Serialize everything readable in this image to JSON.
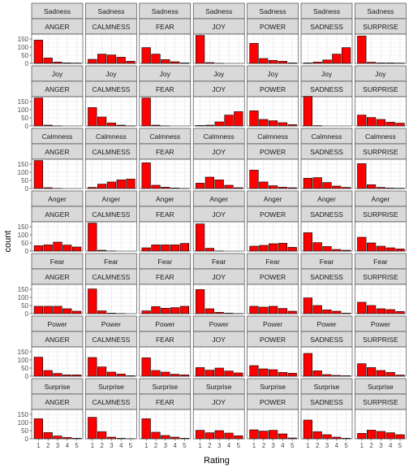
{
  "chart_data": {
    "type": "bar",
    "xlabel": "Rating",
    "ylabel": "count",
    "x_ticks": [
      "1",
      "2",
      "3",
      "4",
      "5"
    ],
    "y_ticks": [
      0,
      50,
      100,
      150
    ],
    "ylim": [
      0,
      180
    ],
    "bar_fill": "#ff0000",
    "bar_stroke": "#000000",
    "strip_fill": "#d9d9d9",
    "panel_bg": "#ffffff",
    "grid": true,
    "grid_color": "#ebebeb",
    "row_labels": [
      "Sadness",
      "Joy",
      "Calmness",
      "Anger",
      "Fear",
      "Power",
      "Surprise"
    ],
    "col_labels": [
      "ANGER",
      "CALMNESS",
      "FEAR",
      "JOY",
      "POWER",
      "SADNESS",
      "SURPRISE"
    ],
    "panels": [
      [
        [
          143,
          33,
          8,
          3,
          2
        ],
        [
          25,
          57,
          52,
          38,
          13
        ],
        [
          97,
          57,
          23,
          10,
          3
        ],
        [
          172,
          5,
          1,
          0,
          0
        ],
        [
          123,
          30,
          18,
          13,
          3
        ],
        [
          3,
          8,
          21,
          57,
          97
        ],
        [
          168,
          7,
          3,
          3,
          2
        ]
      ],
      [
        [
          172,
          5,
          1,
          0,
          0
        ],
        [
          113,
          55,
          18,
          5,
          1
        ],
        [
          172,
          5,
          1,
          0,
          0
        ],
        [
          3,
          5,
          25,
          67,
          88
        ],
        [
          93,
          40,
          32,
          20,
          8
        ],
        [
          182,
          2,
          0,
          0,
          0
        ],
        [
          67,
          52,
          40,
          23,
          17
        ]
      ],
      [
        [
          172,
          5,
          1,
          0,
          0
        ],
        [
          7,
          27,
          40,
          53,
          58
        ],
        [
          158,
          20,
          8,
          3,
          1
        ],
        [
          33,
          70,
          53,
          20,
          5
        ],
        [
          113,
          40,
          17,
          8,
          5
        ],
        [
          63,
          67,
          37,
          15,
          7
        ],
        [
          153,
          23,
          7,
          3,
          2
        ]
      ],
      [
        [
          33,
          38,
          55,
          37,
          25
        ],
        [
          172,
          5,
          1,
          0,
          0
        ],
        [
          20,
          38,
          38,
          38,
          47
        ],
        [
          167,
          17,
          1,
          0,
          0
        ],
        [
          30,
          35,
          45,
          48,
          23
        ],
        [
          113,
          52,
          28,
          10,
          5
        ],
        [
          85,
          50,
          30,
          20,
          13
        ]
      ],
      [
        [
          45,
          45,
          45,
          30,
          15
        ],
        [
          152,
          17,
          3,
          1,
          0
        ],
        [
          17,
          43,
          33,
          37,
          45
        ],
        [
          148,
          30,
          8,
          3,
          1
        ],
        [
          45,
          40,
          45,
          32,
          15
        ],
        [
          97,
          50,
          23,
          15,
          3
        ],
        [
          70,
          50,
          30,
          25,
          13
        ]
      ],
      [
        [
          117,
          35,
          17,
          8,
          8
        ],
        [
          115,
          57,
          25,
          13,
          3
        ],
        [
          113,
          35,
          25,
          12,
          8
        ],
        [
          53,
          37,
          50,
          32,
          20
        ],
        [
          65,
          45,
          40,
          23,
          18
        ],
        [
          140,
          33,
          10,
          5,
          3
        ],
        [
          77,
          53,
          35,
          23,
          7
        ]
      ],
      [
        [
          123,
          38,
          17,
          8,
          3
        ],
        [
          132,
          43,
          10,
          3,
          1
        ],
        [
          123,
          40,
          20,
          10,
          3
        ],
        [
          52,
          37,
          50,
          35,
          18
        ],
        [
          55,
          47,
          52,
          30,
          5
        ],
        [
          115,
          43,
          25,
          10,
          3
        ],
        [
          33,
          53,
          45,
          37,
          25
        ]
      ]
    ]
  }
}
